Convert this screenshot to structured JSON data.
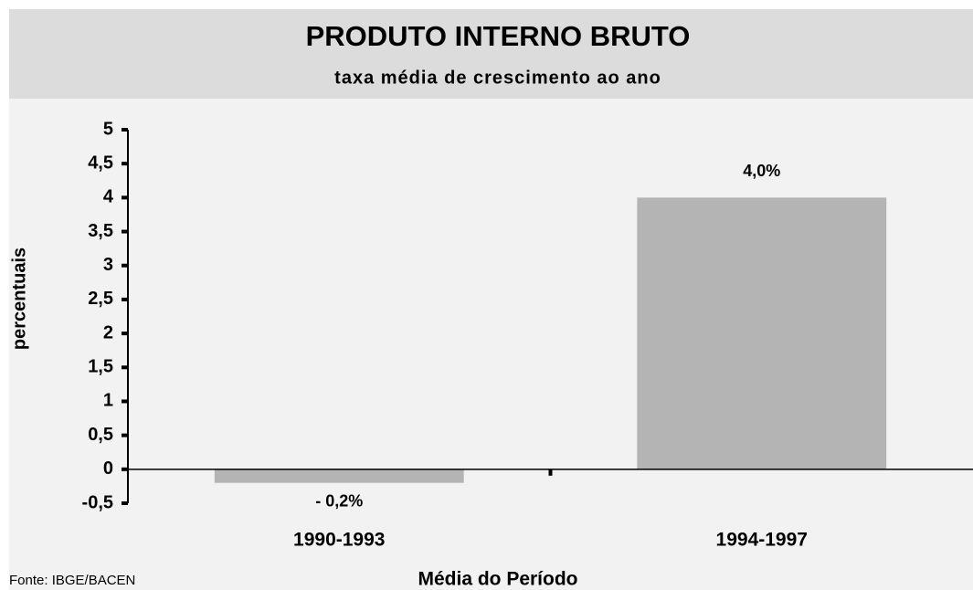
{
  "chart_data": {
    "type": "bar",
    "title": "PRODUTO INTERNO BRUTO",
    "subtitle": "taxa média de crescimento ao ano",
    "y_label": "percentuais",
    "x_label": "Média do Período",
    "source": "Fonte: IBGE/BACEN",
    "categories": [
      "1990-1993",
      "1994-1997"
    ],
    "values": [
      -0.2,
      4.0
    ],
    "value_labels": [
      "- 0,2%",
      "4,0%"
    ],
    "color": "#b4b4b4",
    "ylim": [
      -0.5,
      5
    ],
    "yticks": [
      {
        "value": -0.5,
        "label": "-0,5"
      },
      0,
      {
        "value": 0.5,
        "label": "0,5"
      },
      1,
      {
        "value": 1.5,
        "label": "1,5"
      },
      2,
      {
        "value": 2.5,
        "label": "2,5"
      },
      3,
      {
        "value": 3.5,
        "label": "3,5"
      },
      4,
      {
        "value": 4.5,
        "label": "4,5"
      },
      5
    ],
    "grid": false
  }
}
